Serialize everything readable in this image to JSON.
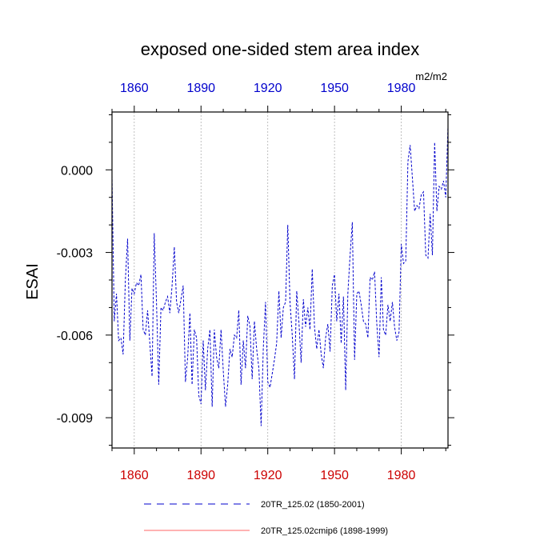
{
  "chart_data": {
    "type": "line",
    "title": "exposed one-sided stem area index",
    "units": "m2/m2",
    "ylabel": "ESAI",
    "xlabel": "",
    "xlim": [
      1850,
      2001
    ],
    "ylim": [
      -0.0101,
      0.0021
    ],
    "x_ticks": [
      1860,
      1890,
      1920,
      1950,
      1980
    ],
    "x_tick_labels": [
      "1860",
      "1890",
      "1920",
      "1950",
      "1980"
    ],
    "y_ticks": [
      0.0,
      -0.003,
      -0.006,
      -0.009
    ],
    "y_tick_labels": [
      "0.000",
      "-0.003",
      "-0.006",
      "-0.009"
    ],
    "grid": "vertical dotted",
    "colors": {
      "series1": "#0000cc",
      "series2": "#ff6666",
      "top_ticks": "#0000cc",
      "bottom_ticks": "#cc0000"
    },
    "series": [
      {
        "name": "20TR_125.02 (1850-2001)",
        "style": "dashed",
        "color": "#0000cc",
        "x": [
          1850,
          1851,
          1852,
          1853,
          1854,
          1855,
          1856,
          1857,
          1858,
          1859,
          1860,
          1861,
          1862,
          1863,
          1864,
          1865,
          1866,
          1867,
          1868,
          1869,
          1870,
          1871,
          1872,
          1873,
          1874,
          1875,
          1876,
          1877,
          1878,
          1879,
          1880,
          1881,
          1882,
          1883,
          1884,
          1885,
          1886,
          1887,
          1888,
          1889,
          1890,
          1891,
          1892,
          1893,
          1894,
          1895,
          1896,
          1897,
          1898,
          1899,
          1900,
          1901,
          1902,
          1903,
          1904,
          1905,
          1906,
          1907,
          1908,
          1909,
          1910,
          1911,
          1912,
          1913,
          1914,
          1915,
          1916,
          1917,
          1918,
          1919,
          1920,
          1921,
          1922,
          1923,
          1924,
          1925,
          1926,
          1927,
          1928,
          1929,
          1930,
          1931,
          1932,
          1933,
          1934,
          1935,
          1936,
          1937,
          1938,
          1939,
          1940,
          1941,
          1942,
          1943,
          1944,
          1945,
          1946,
          1947,
          1948,
          1949,
          1950,
          1951,
          1952,
          1953,
          1954,
          1955,
          1956,
          1957,
          1958,
          1959,
          1960,
          1961,
          1962,
          1963,
          1964,
          1965,
          1966,
          1967,
          1968,
          1969,
          1970,
          1971,
          1972,
          1973,
          1974,
          1975,
          1976,
          1977,
          1978,
          1979,
          1980,
          1981,
          1982,
          1983,
          1984,
          1985,
          1986,
          1987,
          1988,
          1989,
          1990,
          1991,
          1992,
          1993,
          1994,
          1995,
          1996,
          1997,
          1998,
          1999,
          2000,
          2001
        ],
        "y": [
          -0.0002,
          -0.0055,
          -0.0045,
          -0.0062,
          -0.0061,
          -0.0067,
          -0.004,
          -0.0025,
          -0.0062,
          -0.0043,
          -0.0045,
          -0.0041,
          -0.0042,
          -0.0038,
          -0.0058,
          -0.006,
          -0.0051,
          -0.0063,
          -0.0075,
          -0.0023,
          -0.0048,
          -0.0078,
          -0.005,
          -0.0051,
          -0.0048,
          -0.0046,
          -0.0052,
          -0.0042,
          -0.0028,
          -0.0048,
          -0.0052,
          -0.0047,
          -0.0042,
          -0.0077,
          -0.0068,
          -0.0052,
          -0.0078,
          -0.0058,
          -0.0061,
          -0.0082,
          -0.0085,
          -0.0062,
          -0.008,
          -0.0065,
          -0.0058,
          -0.0086,
          -0.0058,
          -0.0068,
          -0.0072,
          -0.0058,
          -0.0073,
          -0.0086,
          -0.0078,
          -0.0065,
          -0.0068,
          -0.006,
          -0.0061,
          -0.0051,
          -0.0078,
          -0.0062,
          -0.0072,
          -0.0053,
          -0.0057,
          -0.0076,
          -0.0055,
          -0.0065,
          -0.0072,
          -0.0093,
          -0.0065,
          -0.0048,
          -0.0077,
          -0.0079,
          -0.0074,
          -0.0069,
          -0.0063,
          -0.0044,
          -0.0061,
          -0.005,
          -0.0048,
          -0.002,
          -0.0048,
          -0.006,
          -0.0076,
          -0.0044,
          -0.0055,
          -0.007,
          -0.0047,
          -0.0057,
          -0.005,
          -0.0058,
          -0.0036,
          -0.0057,
          -0.0065,
          -0.0058,
          -0.0067,
          -0.0072,
          -0.0061,
          -0.0056,
          -0.0066,
          -0.0042,
          -0.0038,
          -0.0055,
          -0.0045,
          -0.0063,
          -0.0046,
          -0.008,
          -0.0045,
          -0.0031,
          -0.0019,
          -0.0069,
          -0.0045,
          -0.0044,
          -0.0049,
          -0.0055,
          -0.0056,
          -0.0061,
          -0.0039,
          -0.004,
          -0.0037,
          -0.0056,
          -0.0068,
          -0.0039,
          -0.0058,
          -0.006,
          -0.0049,
          -0.0055,
          -0.0048,
          -0.0057,
          -0.0062,
          -0.0059,
          -0.0027,
          -0.0034,
          -0.0033,
          0.0003,
          0.0009,
          -0.0003,
          -0.0015,
          -0.0013,
          -0.0014,
          -0.0009,
          -0.0008,
          -0.0031,
          -0.0032,
          -0.0016,
          -0.0031,
          0.001,
          -0.0015,
          -0.0006,
          -0.0007,
          -0.0004,
          -0.001,
          0.0016
        ]
      },
      {
        "name": "20TR_125.02cmip6 (1898-1999)",
        "style": "solid",
        "color": "#ff6666",
        "x": [],
        "y": []
      }
    ]
  }
}
